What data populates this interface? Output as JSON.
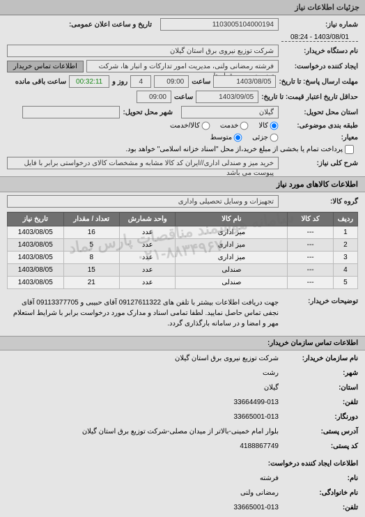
{
  "header": "جزئیات اطلاعات نیاز",
  "info": {
    "doc_number_label": "شماره نیاز:",
    "doc_number": "1103005104000194",
    "public_date_label": "تاریخ و ساعت اعلان عمومی:",
    "public_date": "1403/08/01 - 08:24",
    "buyer_name_label": "نام دستگاه خریدار:",
    "buyer_name": "شرکت توزیع نیروی برق استان گیلان",
    "requester_label": "ایجاد کننده درخواست:",
    "requester": "فرشته رمضانی ولنی، مدیریت امور تدارکات و انبار ها، شرکت توزیع نیروی برق استا",
    "buyer_contact_button": "اطلاعات تماس خریدار",
    "deadline_label": "مهلت ارسال پاسخ: تا تاریخ:",
    "deadline_date": "1403/08/05",
    "time_label": "ساعت",
    "deadline_time": "09:00",
    "remaining_and_label": "روز و",
    "remaining_days": "4",
    "remaining_time": "00:32:11",
    "remaining_left_label": "ساعت باقی مانده",
    "validity_label": "حداقل تاریخ اعتبار قیمت: تا تاریخ:",
    "validity_date": "1403/09/05",
    "validity_time": "09:00",
    "province_label": "استان محل تحویل:",
    "province": "گیلان",
    "city_label": "شهر محل تحویل:",
    "nature_label": "طبقه بندی موضوعی:",
    "radio_goods": "کالا",
    "radio_service": "خدمت",
    "radio_goods_service": "کالا/خدمت",
    "scale_label": "معیار:",
    "radio_small": "جزئی",
    "radio_medium": "متوسط",
    "partial_pay_checkbox": "پرداخت تمام یا بخشی از مبلغ خرید،از محل \"اسناد خزانه اسلامی\" خواهد بود.",
    "general_desc_label": "شرح کلی نیاز:",
    "general_desc": "خرید میز و صندلی اداری//ایران کد کالا مشابه و مشخصات کالای درخواستی برابر با فایل پیوست می باشد"
  },
  "items_header": "اطلاعات کالاهای مورد نیاز",
  "group_label": "گروه کالا:",
  "group_value": "تجهیزات و وسایل تحصیلی واداری",
  "table": {
    "columns": [
      "ردیف",
      "کد کالا",
      "نام کالا",
      "واحد شمارش",
      "تعداد / مقدار",
      "تاریخ نیاز"
    ],
    "rows": [
      [
        "1",
        "---",
        "میز اداری",
        "عدد",
        "16",
        "1403/08/05"
      ],
      [
        "2",
        "---",
        "میز اداری",
        "عدد",
        "5",
        "1403/08/05"
      ],
      [
        "3",
        "---",
        "میز اداری",
        "عدد",
        "8",
        "1403/08/05"
      ],
      [
        "4",
        "---",
        "صندلی",
        "عدد",
        "15",
        "1403/08/05"
      ],
      [
        "5",
        "---",
        "صندلی",
        "عدد",
        "21",
        "1403/08/05"
      ]
    ],
    "col_widths": [
      "7%",
      "13%",
      "32%",
      "16%",
      "16%",
      "16%"
    ]
  },
  "watermark_lines": [
    "سامانه هوشمند مناقصات پارس نماد",
    "۰۲۱-۸۸۳۴۹۶۷۰"
  ],
  "buyer_notes_label": "توضیحات خریدار:",
  "buyer_notes": "جهت دریافت اطلاعات بیشتر با تلفن های 09127611322 آقای حبیبی و 09113377705 آقای نجفی تماس حاصل نمایید. لطفا تمامی اسناد و مدارک مورد درخواست برابر با شرایط استعلام مهر و امضا و در سامانه بارگذاری گردد.",
  "contact_header": "اطلاعات تماس سازمان خریدار:",
  "contact": {
    "org_label": "نام سازمان خریدار:",
    "org_value": "شرکت توزیع نیروی برق استان گیلان",
    "city_label": "شهر:",
    "city_value": "رشت",
    "province_label": "استان:",
    "province_value": "گیلان",
    "tel_label": "تلفن:",
    "tel_value": "33664499-013",
    "fax_label": "دورنگار:",
    "fax_value": "33665001-013",
    "postal_address_label": "آدرس پستی:",
    "postal_address_value": "بلوار امام خمینی-بالاتر از میدان مصلی-شرکت توزیع برق استان گیلان",
    "postal_code_label": "کد پستی:",
    "postal_code_value": "4188867749",
    "creator_header": "اطلاعات ایجاد کننده درخواست:",
    "creator_name_label": "نام:",
    "creator_name": "فرشته",
    "creator_lastname_label": "نام خانوادگی:",
    "creator_lastname": "رمضانی ولنی",
    "creator_tel_label": "تلفن:",
    "creator_tel": "33665001-013"
  }
}
